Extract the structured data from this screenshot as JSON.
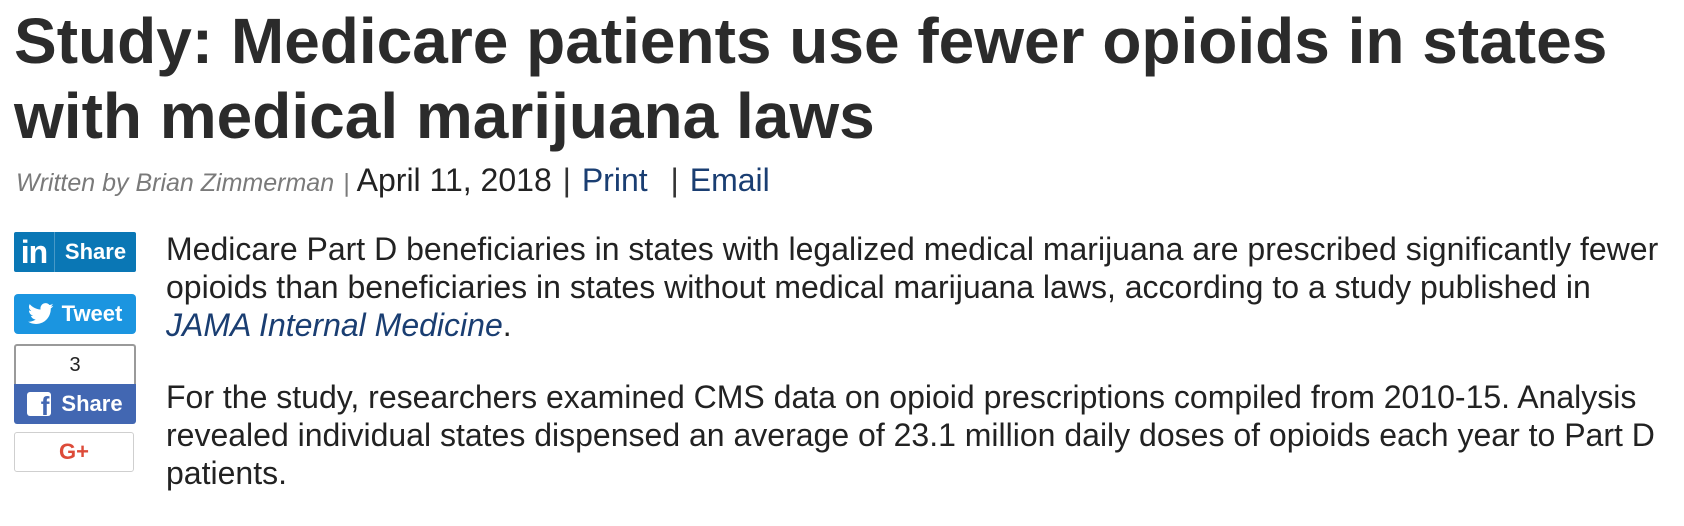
{
  "article": {
    "headline": "Study: Medicare patients use fewer opioids in states with medical marijuana laws",
    "byline": {
      "author": "Written by Brian Zimmerman",
      "separator": "|",
      "date": "April 11, 2018",
      "print_label": "Print",
      "email_label": "Email"
    },
    "paragraphs": [
      {
        "text_before": "Medicare Part D beneficiaries in states with legalized medical marijuana are prescribed significantly fewer opioids than beneficiaries in states without medical marijuana laws, according to a study published in ",
        "link": "JAMA Internal Medicine",
        "text_after": "."
      },
      {
        "text": "For the study, researchers examined CMS data on opioid prescriptions compiled from 2010-15. Analysis revealed individual states dispensed an average of 23.1 million daily doses of opioids each year to Part D patients."
      }
    ]
  },
  "social": {
    "linkedin": {
      "logo": "in",
      "label": "Share",
      "icon": "linkedin-icon",
      "color": "#0a77b5"
    },
    "twitter": {
      "label": "Tweet",
      "icon": "twitter-bird-icon",
      "color": "#1b95e0"
    },
    "facebook": {
      "count": "3",
      "label": "Share",
      "icon": "facebook-icon",
      "color": "#4267b2"
    },
    "googleplus": {
      "label": "G+",
      "icon": "google-plus-icon",
      "color": "#dd4b39"
    }
  },
  "colors": {
    "link": "#1a3e72",
    "headline": "#2b2b2b",
    "byline_author": "#7a7a7a"
  }
}
